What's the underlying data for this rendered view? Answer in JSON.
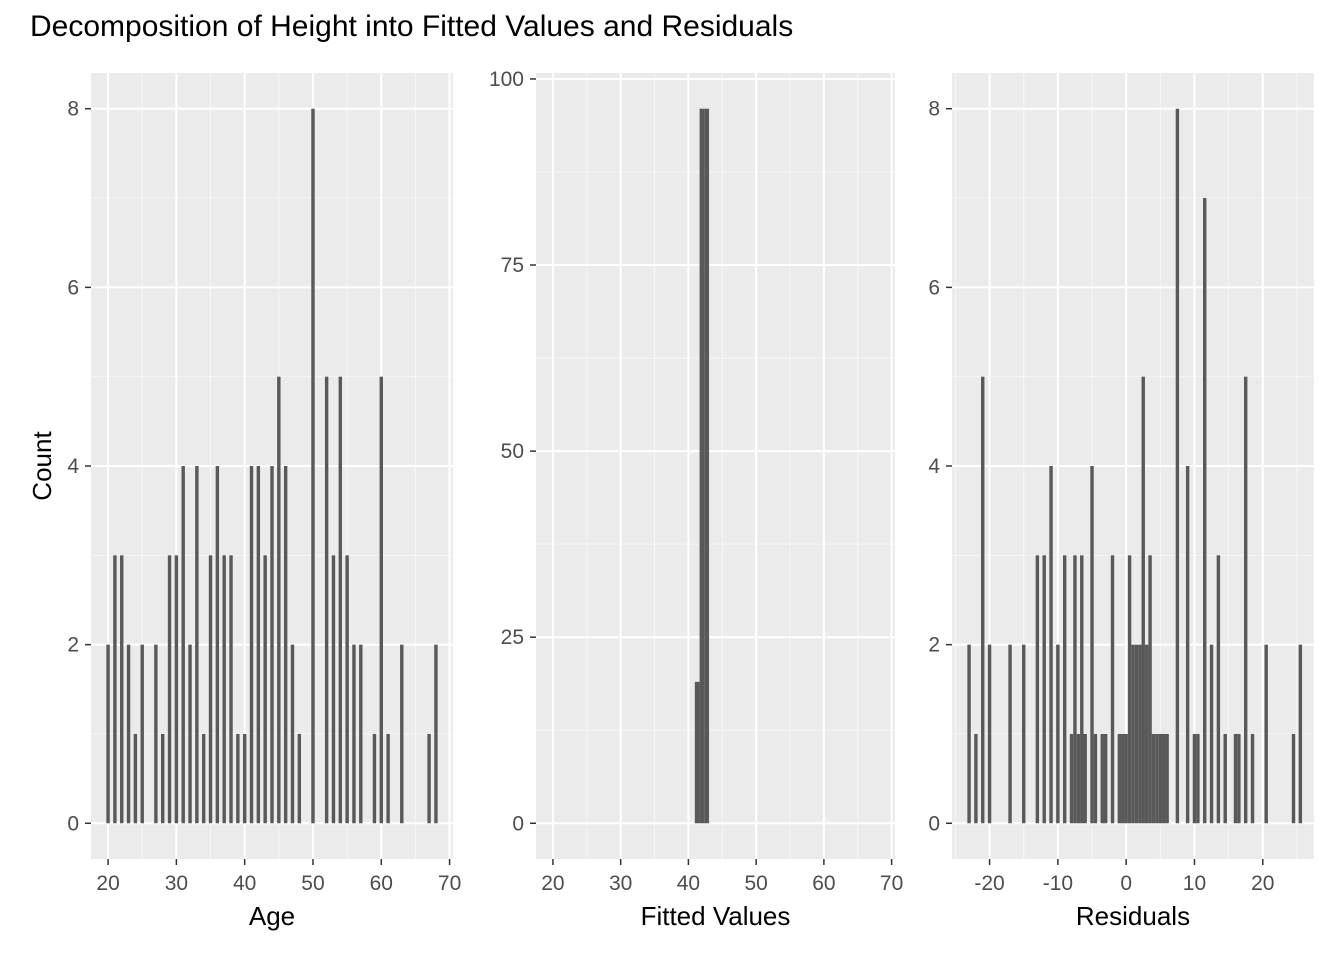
{
  "title": "Decomposition of Height into Fitted Values and Residuals",
  "colors": {
    "panel_bg": "#EBEBEB",
    "grid_major": "#FFFFFF",
    "bar": "#595959",
    "tick_text": "#4D4D4D",
    "axis_title": "#000000"
  },
  "chart_data": [
    {
      "type": "bar",
      "xlabel": "Age",
      "ylabel": "Count",
      "xlim": [
        17.5,
        70.5
      ],
      "ylim": [
        -0.4,
        8.4
      ],
      "x_ticks": [
        20,
        30,
        40,
        50,
        60,
        70
      ],
      "y_ticks": [
        0,
        2,
        4,
        6,
        8
      ],
      "y_tick_labels": [
        "0",
        "2",
        "4",
        "6",
        "8"
      ],
      "bar_width": 0.5,
      "x": [
        20,
        21,
        22,
        23,
        24,
        25,
        27,
        28,
        29,
        30,
        31,
        32,
        33,
        34,
        35,
        36,
        37,
        38,
        39,
        40,
        41,
        42,
        43,
        44,
        45,
        46,
        47,
        48,
        50,
        52,
        53,
        54,
        55,
        56,
        57,
        59,
        60,
        61,
        63,
        67,
        68
      ],
      "values": [
        2,
        3,
        3,
        2,
        1,
        2,
        2,
        1,
        3,
        3,
        4,
        2,
        4,
        1,
        3,
        4,
        3,
        3,
        1,
        1,
        4,
        4,
        3,
        4,
        5,
        4,
        2,
        1,
        8,
        5,
        3,
        5,
        3,
        2,
        2,
        1,
        5,
        1,
        2,
        1,
        2
      ]
    },
    {
      "type": "bar",
      "xlabel": "Fitted Values",
      "ylabel": "",
      "xlim": [
        17.5,
        70.5
      ],
      "ylim": [
        -4.8,
        100.8
      ],
      "x_ticks": [
        20,
        30,
        40,
        50,
        60,
        70
      ],
      "y_ticks": [
        0,
        25,
        50,
        75,
        100
      ],
      "y_tick_labels": [
        "0",
        "25",
        "50",
        "75",
        "100"
      ],
      "bar_width": 0.7,
      "x": [
        41.3,
        42.0,
        42.7
      ],
      "values": [
        19,
        96,
        96
      ]
    },
    {
      "type": "bar",
      "xlabel": "Residuals",
      "ylabel": "",
      "xlim": [
        -25.5,
        27.5
      ],
      "ylim": [
        -0.4,
        8.4
      ],
      "x_ticks": [
        -20,
        -10,
        0,
        10,
        20
      ],
      "y_ticks": [
        0,
        2,
        4,
        6,
        8
      ],
      "y_tick_labels": [
        "0",
        "2",
        "4",
        "6",
        "8"
      ],
      "bar_width": 0.5,
      "x": [
        -23,
        -22,
        -21,
        -20,
        -17,
        -15,
        -13,
        -12,
        -11,
        -10,
        -9,
        -8,
        -7.5,
        -7,
        -6.5,
        -6,
        -5,
        -4.5,
        -3.5,
        -3,
        -2,
        -1,
        -0.5,
        0,
        0.5,
        1,
        1.5,
        2,
        2.5,
        3,
        3.5,
        4,
        4.5,
        5,
        5.5,
        6,
        7.5,
        9,
        10,
        10.5,
        11.5,
        12.5,
        13.5,
        14.5,
        16,
        16.5,
        17.5,
        18.5,
        20.5,
        24.5,
        25.5
      ],
      "values": [
        2,
        1,
        5,
        2,
        2,
        2,
        3,
        3,
        4,
        2,
        3,
        1,
        3,
        1,
        3,
        1,
        4,
        1,
        1,
        1,
        3,
        1,
        1,
        1,
        3,
        2,
        2,
        2,
        5,
        2,
        3,
        1,
        1,
        1,
        1,
        1,
        8,
        4,
        1,
        1,
        7,
        2,
        3,
        1,
        1,
        1,
        5,
        1,
        2,
        1,
        2
      ]
    }
  ]
}
